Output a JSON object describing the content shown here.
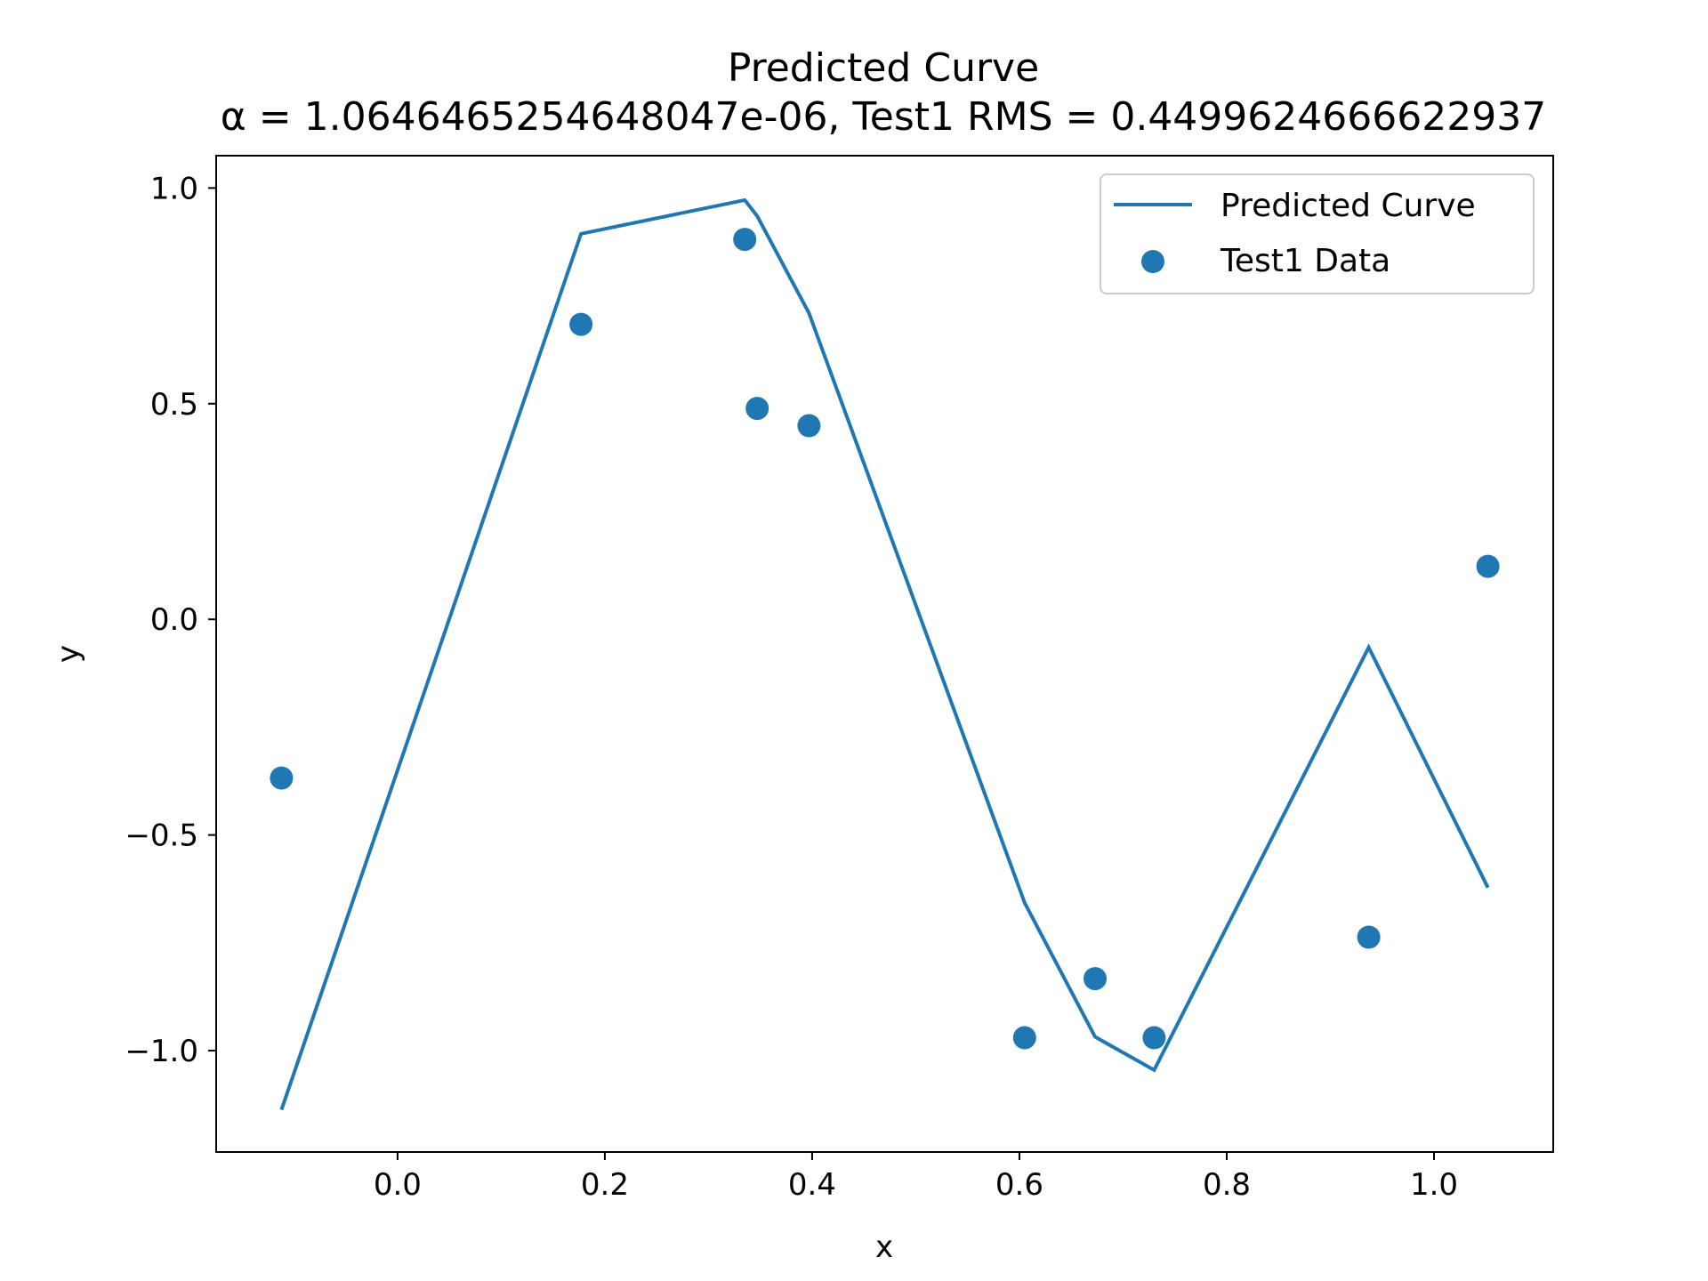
{
  "chart_data": {
    "type": "line",
    "title": "Predicted Curve",
    "subtitle": "α = 1.0646465254648047e-06, Test1 RMS = 0.4499624666622937",
    "xlabel": "x",
    "ylabel": "y",
    "xlim": [
      -0.175,
      1.115
    ],
    "ylim": [
      -1.235,
      1.075
    ],
    "xticks": [
      0.0,
      0.2,
      0.4,
      0.6,
      0.8,
      1.0
    ],
    "xtick_labels": [
      "0.0",
      "0.2",
      "0.4",
      "0.6",
      "0.8",
      "1.0"
    ],
    "yticks": [
      1.0,
      0.5,
      0.0,
      -0.5,
      -1.0
    ],
    "ytick_labels": [
      "1.0",
      "0.5",
      "0.0",
      "−0.5",
      "−1.0"
    ],
    "grid": false,
    "legend_position": "top-right",
    "series": [
      {
        "name": "Predicted Curve",
        "kind": "line",
        "color": "#1f77b4",
        "x": [
          -0.112,
          0.177,
          0.335,
          0.347,
          0.397,
          0.605,
          0.673,
          0.73,
          0.937,
          1.052
        ],
        "y": [
          -1.137,
          0.894,
          0.972,
          0.935,
          0.71,
          -0.657,
          -0.968,
          -1.045,
          -0.065,
          -0.622
        ]
      },
      {
        "name": "Test1 Data",
        "kind": "scatter",
        "color": "#1f77b4",
        "x": [
          -0.112,
          0.177,
          0.335,
          0.347,
          0.397,
          0.605,
          0.673,
          0.73,
          0.937,
          1.052
        ],
        "y": [
          -0.368,
          0.684,
          0.881,
          0.489,
          0.449,
          -0.97,
          -0.833,
          -0.97,
          -0.737,
          0.123
        ]
      }
    ]
  }
}
